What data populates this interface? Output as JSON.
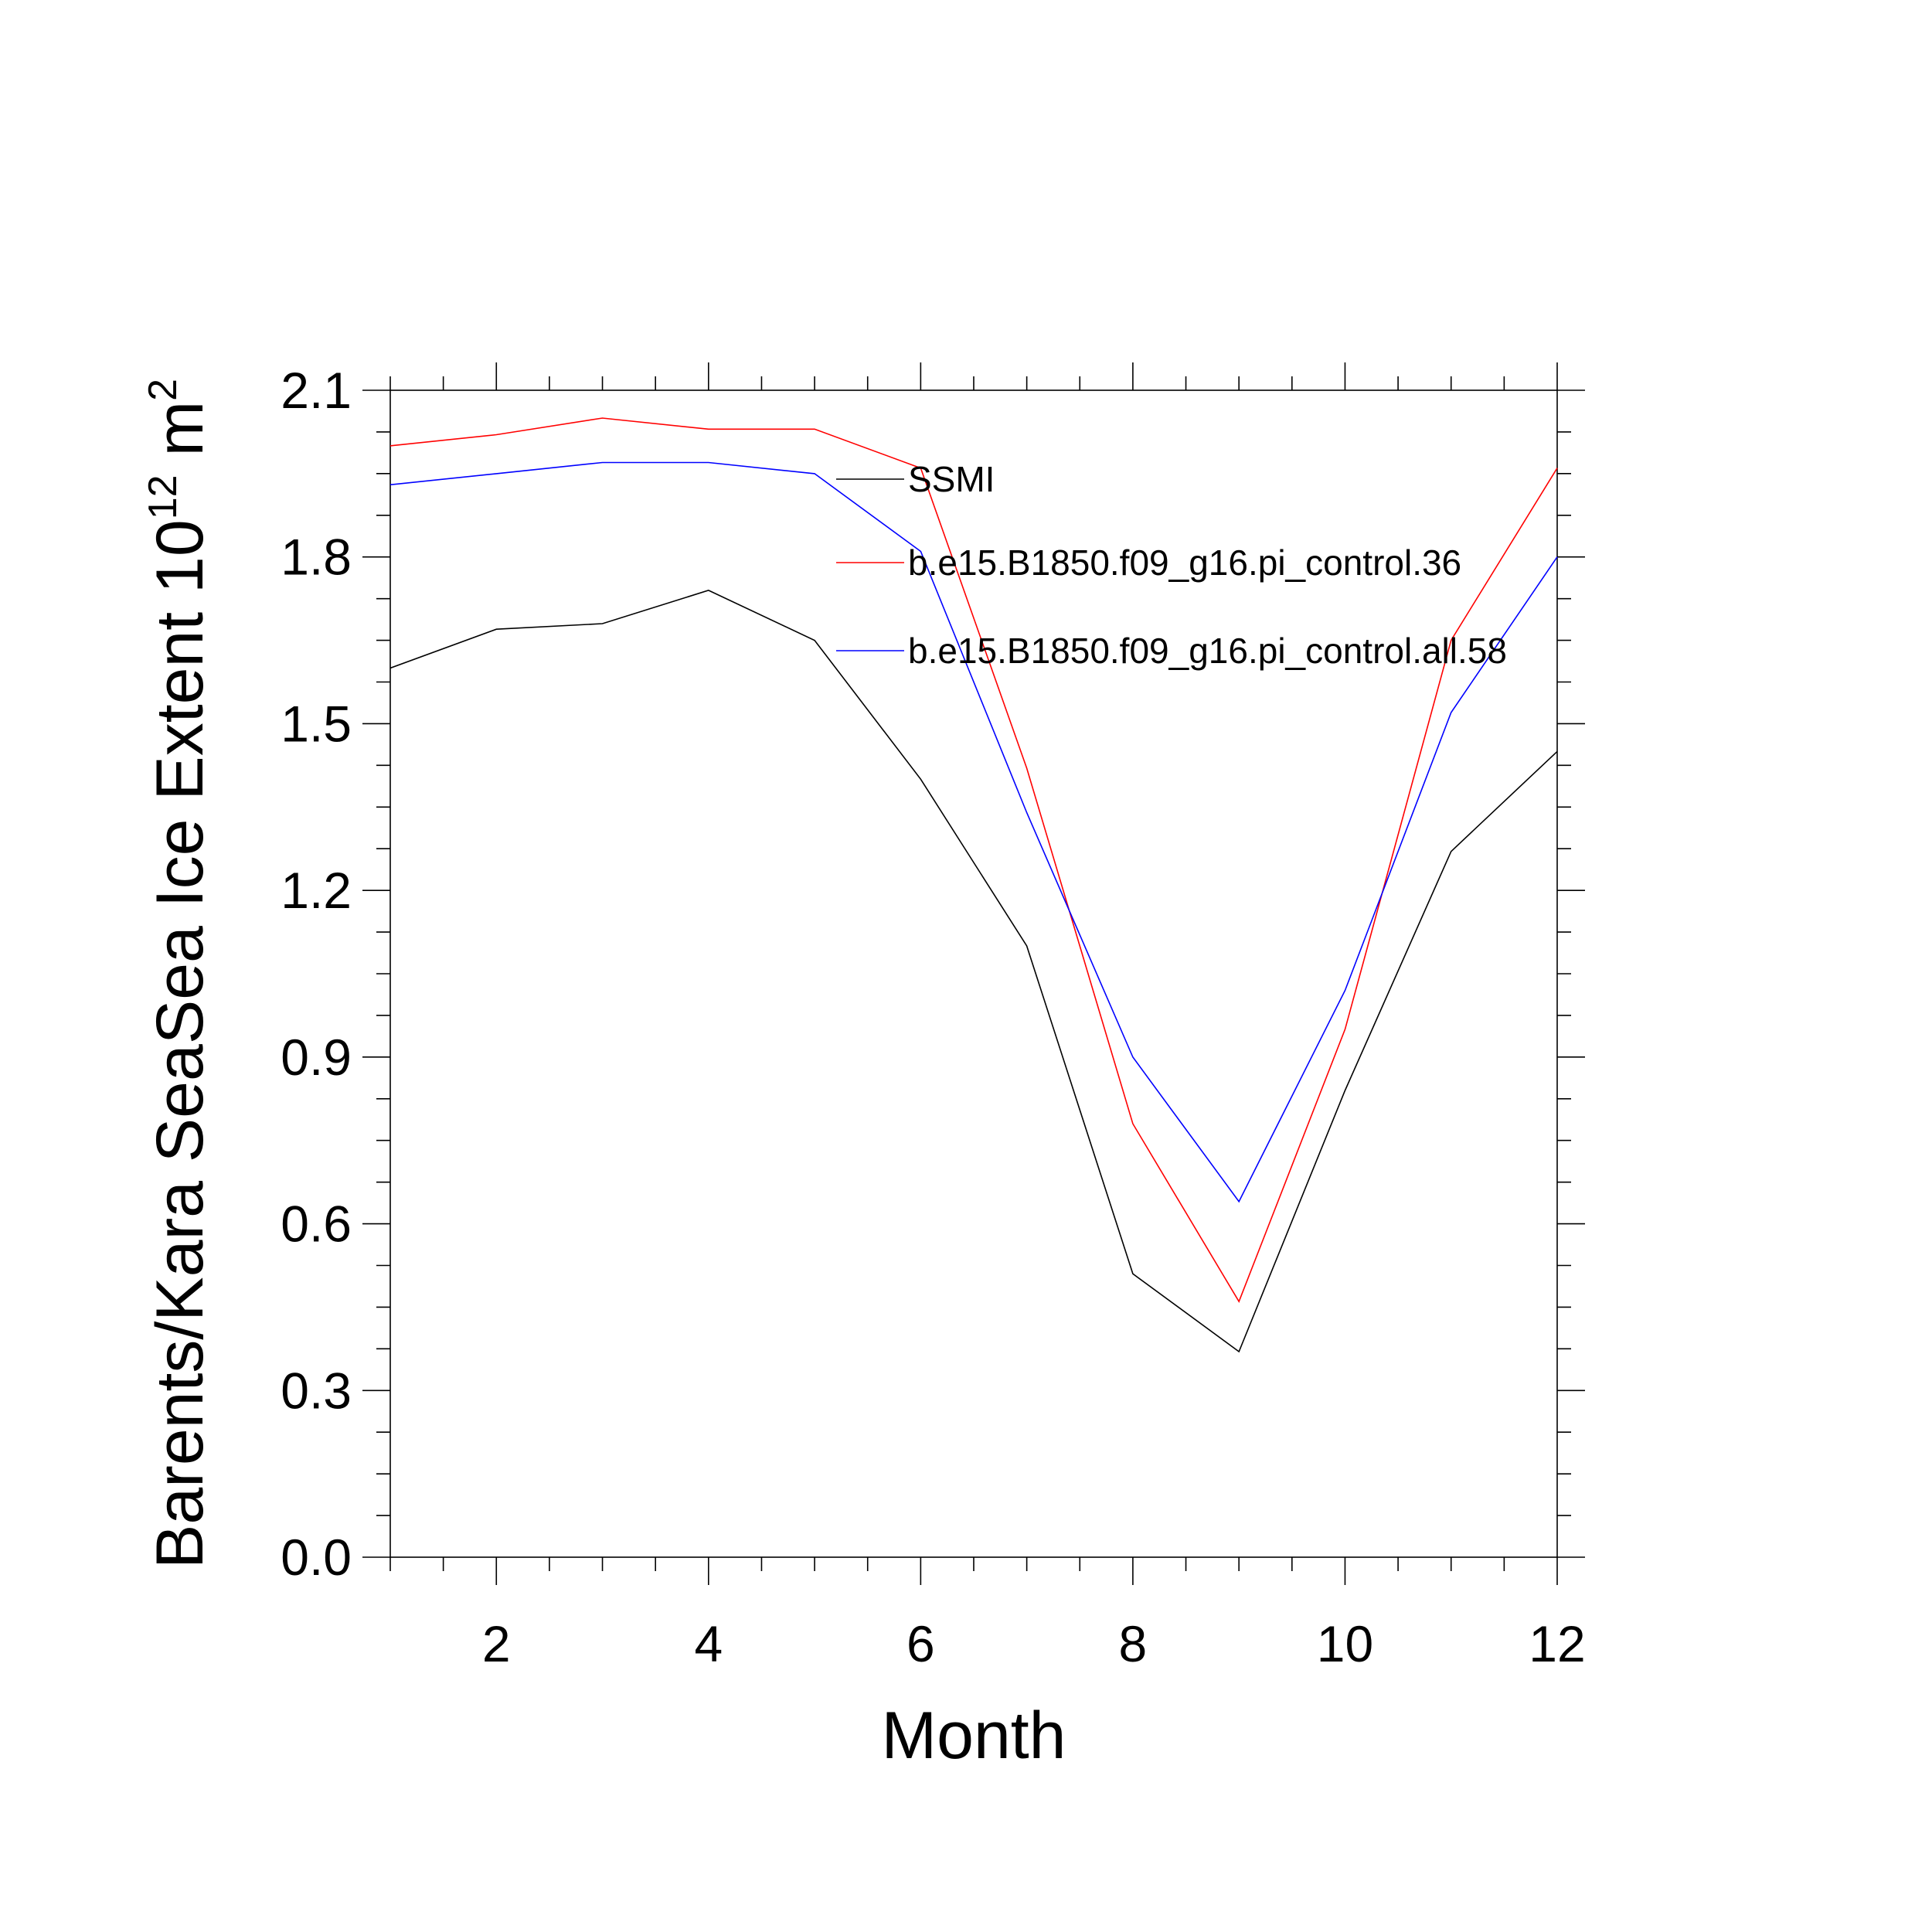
{
  "chart_data": {
    "type": "line",
    "xlabel": "Month",
    "ylabel": "Barents/Kara SeaSea Ice Extent 10",
    "ylabel_exponent": "12",
    "ylabel_unit": " m",
    "ylabel_unit_exponent": "2",
    "xlim": [
      1,
      12
    ],
    "ylim": [
      0.0,
      2.1
    ],
    "x_ticks": [
      2,
      4,
      6,
      8,
      10,
      12
    ],
    "x_tick_labels": [
      "2",
      "4",
      "6",
      "8",
      "10",
      "12"
    ],
    "y_ticks": [
      0.0,
      0.3,
      0.6,
      0.9,
      1.2,
      1.5,
      1.8,
      2.1
    ],
    "y_tick_labels": [
      "0.0",
      "0.3",
      "0.6",
      "0.9",
      "1.2",
      "1.5",
      "1.8",
      "2.1"
    ],
    "grid": false,
    "legend_position": "top-right inside",
    "x": [
      1,
      2,
      3,
      4,
      5,
      6,
      7,
      8,
      9,
      10,
      11,
      12
    ],
    "series": [
      {
        "name": "SSMI",
        "color": "#000000",
        "values": [
          1.6,
          1.67,
          1.68,
          1.74,
          1.65,
          1.4,
          1.1,
          0.51,
          0.37,
          0.84,
          1.27,
          1.45
        ]
      },
      {
        "name": "b.e15.B1850.f09_g16.pi_control.36",
        "color": "#ff0000",
        "values": [
          2.0,
          2.02,
          2.05,
          2.03,
          2.03,
          1.96,
          1.42,
          0.78,
          0.46,
          0.95,
          1.65,
          1.96
        ]
      },
      {
        "name": "b.e15.B1850.f09_g16.pi_control.all.58",
        "color": "#0000ff",
        "values": [
          1.93,
          1.95,
          1.97,
          1.97,
          1.95,
          1.81,
          1.34,
          0.9,
          0.64,
          1.02,
          1.52,
          1.8
        ]
      }
    ]
  }
}
